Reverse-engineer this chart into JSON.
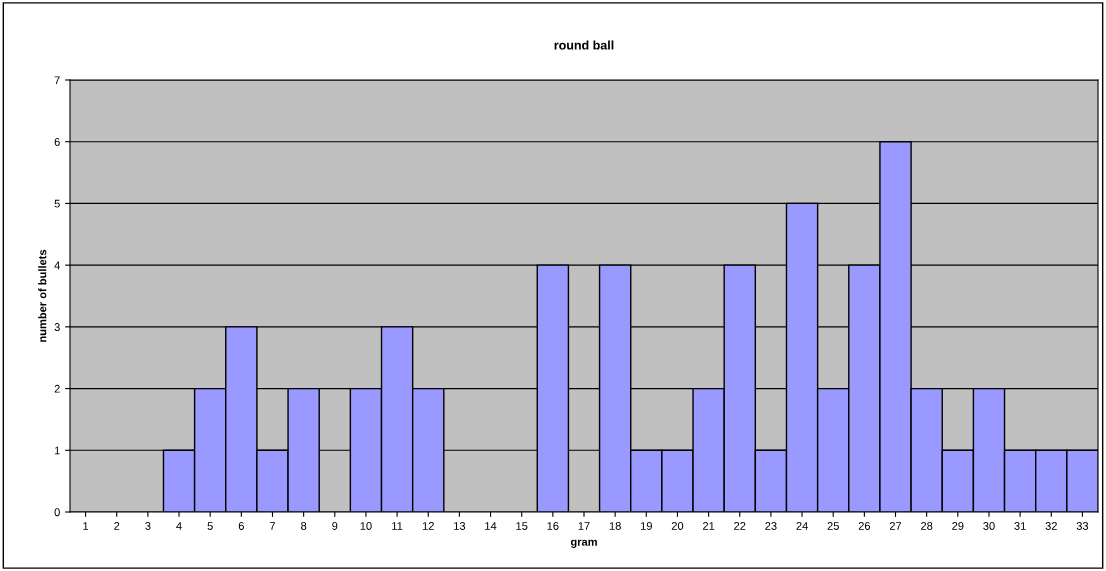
{
  "chart_data": {
    "type": "bar",
    "title": "round ball",
    "xlabel": "gram",
    "ylabel": "number of bullets",
    "categories": [
      "1",
      "2",
      "3",
      "4",
      "5",
      "6",
      "7",
      "8",
      "9",
      "10",
      "11",
      "12",
      "13",
      "14",
      "15",
      "16",
      "17",
      "18",
      "19",
      "20",
      "21",
      "22",
      "23",
      "24",
      "25",
      "26",
      "27",
      "28",
      "29",
      "30",
      "31",
      "32",
      "33"
    ],
    "values": [
      0,
      0,
      0,
      1,
      2,
      3,
      1,
      2,
      0,
      2,
      3,
      2,
      0,
      0,
      0,
      4,
      0,
      4,
      1,
      1,
      2,
      4,
      1,
      5,
      2,
      4,
      6,
      2,
      1,
      2,
      1,
      1,
      1
    ],
    "color": "#9999ff",
    "ylim": [
      0,
      7
    ],
    "yticks": [
      0,
      1,
      2,
      3,
      4,
      5,
      6,
      7
    ],
    "grid": "y"
  }
}
